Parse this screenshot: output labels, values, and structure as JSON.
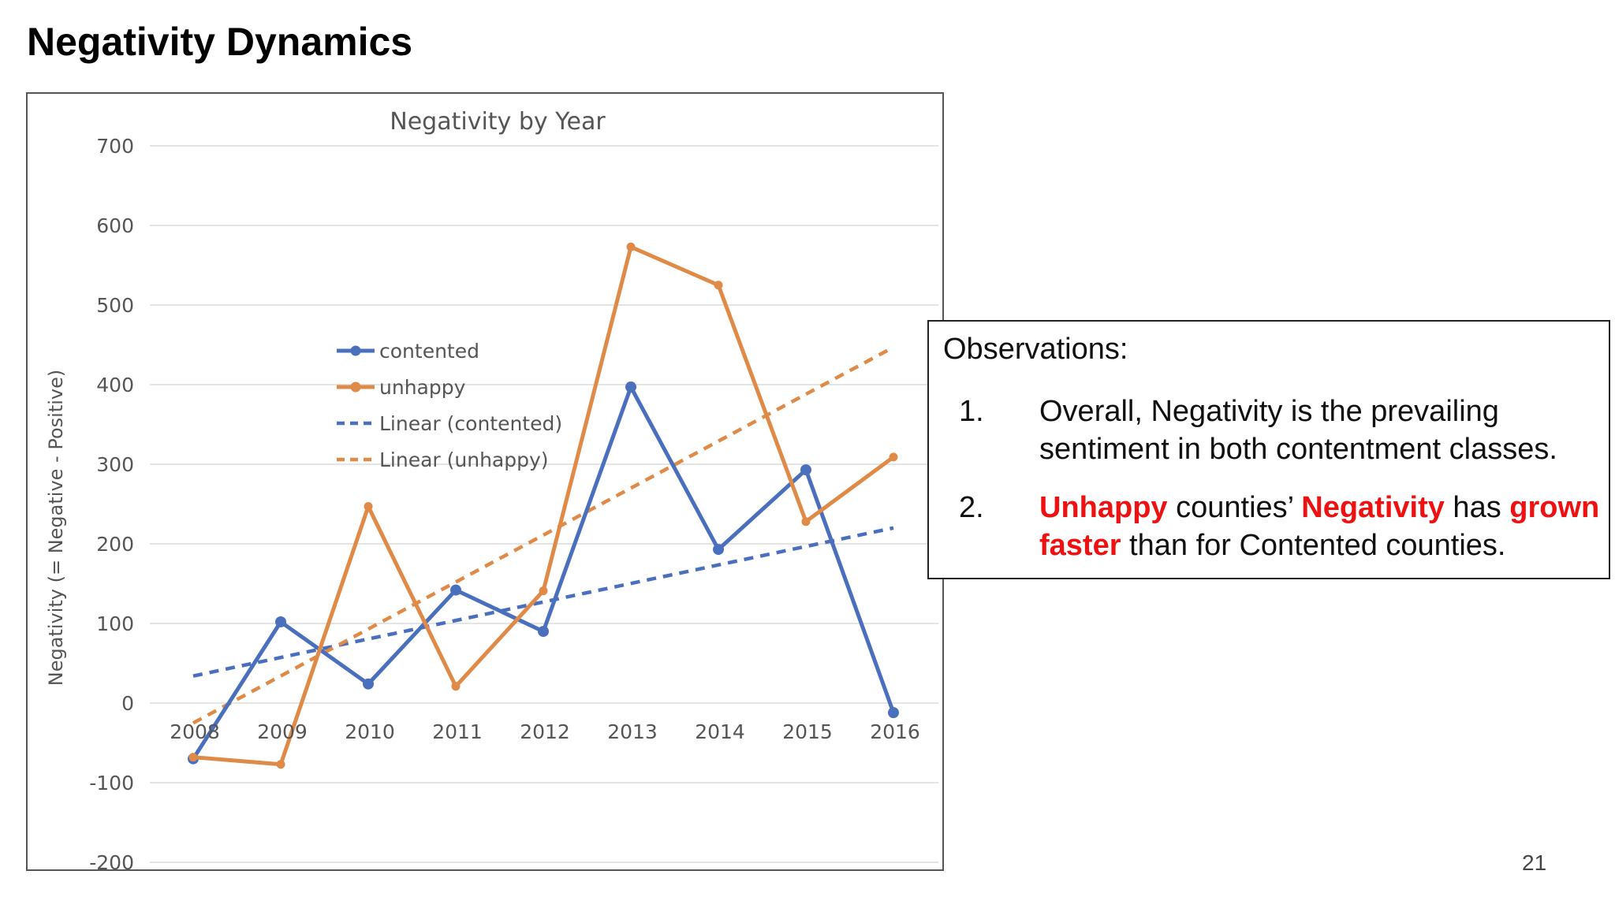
{
  "slide": {
    "title": "Negativity Dynamics",
    "page_number": "21"
  },
  "observations": {
    "heading": "Observations:",
    "items": [
      {
        "number": "1.",
        "parts": [
          {
            "text": "Overall, Negativity is the prevailing sentiment in both contentment classes.",
            "highlight": false
          }
        ]
      },
      {
        "number": "2.",
        "parts": [
          {
            "text": "Unhappy",
            "highlight": true
          },
          {
            "text": " counties’ ",
            "highlight": false
          },
          {
            "text": "Negativity",
            "highlight": true
          },
          {
            "text": " has ",
            "highlight": false
          },
          {
            "text": "grown faster",
            "highlight": true
          },
          {
            "text": " than for Contented counties.",
            "highlight": false
          }
        ]
      }
    ],
    "highlight_color": "#ee1111"
  },
  "chart_data": {
    "type": "line",
    "title": "Negativity by Year",
    "xlabel": "",
    "ylabel": "Negativity (= Negative - Positive)",
    "categories": [
      "2008",
      "2009",
      "2010",
      "2011",
      "2012",
      "2013",
      "2014",
      "2015",
      "2016"
    ],
    "ylim": [
      -200,
      700
    ],
    "yticks": [
      -200,
      -100,
      0,
      100,
      200,
      300,
      400,
      500,
      600,
      700
    ],
    "grid": true,
    "legend_position": "upper-left-center",
    "series": [
      {
        "name": "contented",
        "values": [
          -70,
          102,
          24,
          142,
          90,
          397,
          193,
          293,
          -12
        ],
        "color": "#4a6fbd",
        "style": "solid-markers"
      },
      {
        "name": "unhappy",
        "values": [
          -68,
          -77,
          247,
          21,
          141,
          573,
          525,
          228,
          309
        ],
        "color": "#e08a48",
        "style": "solid-markers"
      }
    ],
    "trendlines": [
      {
        "name": "Linear (contented)",
        "start": 34,
        "end": 220,
        "color": "#4a6fbd",
        "style": "dashed"
      },
      {
        "name": "Linear (unhappy)",
        "start": -25,
        "end": 447,
        "color": "#e08a48",
        "style": "dashed"
      }
    ]
  }
}
